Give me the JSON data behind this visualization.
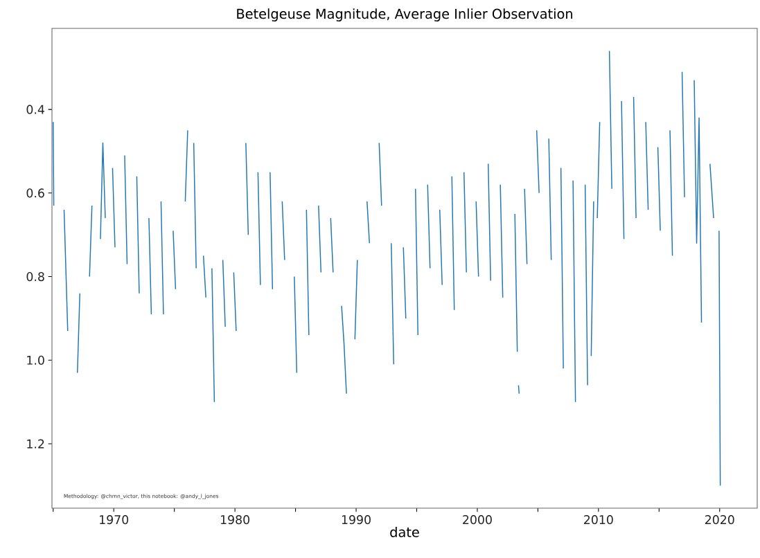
{
  "chart_data": {
    "type": "line",
    "title": "Betelgeuse Magnitude, Average Inlier Observation",
    "xlabel": "date",
    "annotations": [
      "Methodology: @chmn_victor, this notebook: @andy_l_jones"
    ],
    "xlim": [
      1964.9,
      2023.1
    ],
    "ylim": [
      1.354,
      0.206
    ],
    "xticks": [
      {
        "value": 1965,
        "label": null
      },
      1970,
      {
        "value": 1975,
        "label": null
      },
      1980,
      {
        "value": 1985,
        "label": null
      },
      1990,
      {
        "value": 1995,
        "label": null
      },
      2000,
      {
        "value": 2005,
        "label": null
      },
      2010,
      {
        "value": 2015,
        "label": null
      },
      2020
    ],
    "yticks": [
      0.4,
      0.6,
      0.8,
      {
        "value": 1.0,
        "label": "1.0"
      },
      1.2
    ],
    "series": [
      {
        "color": "#1f77b4",
        "x": [
          1965.0,
          1965.05,
          1965.4,
          1965.9,
          1966.2,
          1966.6,
          1967.0,
          1967.2,
          1967.6,
          1968.0,
          1968.2,
          1968.6,
          1968.9,
          1969.1,
          1969.3,
          1969.6,
          1969.9,
          1970.1,
          1970.5,
          1970.9,
          1971.1,
          1971.5,
          1971.9,
          1972.1,
          1972.5,
          1972.9,
          1973.1,
          1973.5,
          1973.9,
          1974.1,
          1974.5,
          1974.9,
          1975.1,
          1975.5,
          1975.9,
          1976.1,
          1976.4,
          1976.6,
          1976.8,
          1977.1,
          1977.4,
          1977.6,
          1977.9,
          1978.1,
          1978.3,
          1978.7,
          1979.0,
          1979.2,
          1979.6,
          1979.9,
          1980.1,
          1980.5,
          1980.9,
          1981.1,
          1981.5,
          1981.9,
          1982.1,
          1982.5,
          1982.9,
          1983.1,
          1983.5,
          1983.9,
          1984.1,
          1984.5,
          1984.9,
          1985.1,
          1985.5,
          1985.9,
          1986.1,
          1986.5,
          1986.9,
          1987.1,
          1987.5,
          1987.9,
          1988.1,
          1988.5,
          1988.8,
          1989.0,
          1989.2,
          1989.5,
          1989.9,
          1990.1,
          1990.5,
          1990.9,
          1991.1,
          1991.5,
          1991.9,
          1992.1,
          1992.5,
          1992.9,
          1993.1,
          1993.5,
          1993.9,
          1994.1,
          1994.5,
          1994.9,
          1995.1,
          1995.5,
          1995.9,
          1996.1,
          1996.5,
          1996.9,
          1997.1,
          1997.5,
          1997.9,
          1998.1,
          1998.5,
          1998.9,
          1999.1,
          1999.5,
          1999.9,
          2000.1,
          2000.5,
          2000.9,
          2001.1,
          2001.5,
          2001.9,
          2002.1,
          2002.6,
          2003.1,
          2003.3,
          2003.35,
          2003.4,
          2003.45,
          2003.6,
          2003.9,
          2004.1,
          2004.5,
          2004.9,
          2005.1,
          2005.5,
          2005.9,
          2006.1,
          2006.5,
          2006.9,
          2007.1,
          2007.5,
          2007.9,
          2008.1,
          2008.5,
          2008.9,
          2009.1,
          2009.3,
          2009.4,
          2009.6,
          2009.8,
          2009.9,
          2010.1,
          2010.5,
          2010.9,
          2011.1,
          2011.5,
          2011.9,
          2012.1,
          2012.5,
          2012.9,
          2013.1,
          2013.5,
          2013.9,
          2014.1,
          2014.5,
          2014.9,
          2015.1,
          2015.5,
          2015.9,
          2016.1,
          2016.5,
          2016.9,
          2017.1,
          2017.5,
          2017.9,
          2018.1,
          2018.3,
          2018.5,
          2018.9,
          2019.2,
          2019.5,
          2019.8,
          2019.95,
          2020.05
        ],
        "values": [
          0.43,
          0.63,
          null,
          0.64,
          0.93,
          null,
          1.03,
          0.84,
          null,
          0.8,
          0.63,
          null,
          0.71,
          0.48,
          0.66,
          null,
          0.54,
          0.73,
          null,
          0.51,
          0.77,
          null,
          0.56,
          0.84,
          null,
          0.66,
          0.89,
          null,
          0.62,
          0.89,
          null,
          0.69,
          0.83,
          null,
          0.62,
          0.45,
          null,
          0.48,
          0.78,
          null,
          0.75,
          0.85,
          null,
          0.78,
          1.1,
          null,
          0.76,
          0.92,
          null,
          0.79,
          0.93,
          null,
          0.48,
          0.7,
          null,
          0.55,
          0.82,
          null,
          0.55,
          0.83,
          null,
          0.62,
          0.76,
          null,
          0.8,
          1.03,
          null,
          0.64,
          0.94,
          null,
          0.63,
          0.79,
          null,
          0.66,
          0.79,
          null,
          0.87,
          0.96,
          1.08,
          null,
          0.95,
          0.76,
          null,
          0.62,
          0.72,
          null,
          0.48,
          0.63,
          null,
          0.72,
          1.01,
          null,
          0.73,
          0.9,
          null,
          0.59,
          0.94,
          null,
          0.58,
          0.78,
          null,
          0.64,
          0.82,
          null,
          0.56,
          0.88,
          null,
          0.55,
          0.79,
          null,
          0.62,
          0.8,
          null,
          0.53,
          0.81,
          null,
          0.58,
          0.85,
          null,
          0.65,
          0.98,
          null,
          1.06,
          1.08,
          null,
          0.59,
          0.77,
          null,
          0.45,
          0.6,
          null,
          0.47,
          0.76,
          null,
          0.54,
          1.02,
          null,
          0.57,
          1.1,
          null,
          0.58,
          1.06,
          null,
          0.99,
          0.62,
          null,
          0.66,
          0.43,
          null,
          0.26,
          0.59,
          null,
          0.38,
          0.71,
          null,
          0.37,
          0.66,
          null,
          0.43,
          0.64,
          null,
          0.49,
          0.69,
          null,
          0.45,
          0.75,
          null,
          0.31,
          0.61,
          null,
          0.33,
          0.72,
          0.42,
          0.91,
          null,
          0.53,
          0.66,
          null,
          0.69,
          1.3
        ]
      }
    ]
  }
}
